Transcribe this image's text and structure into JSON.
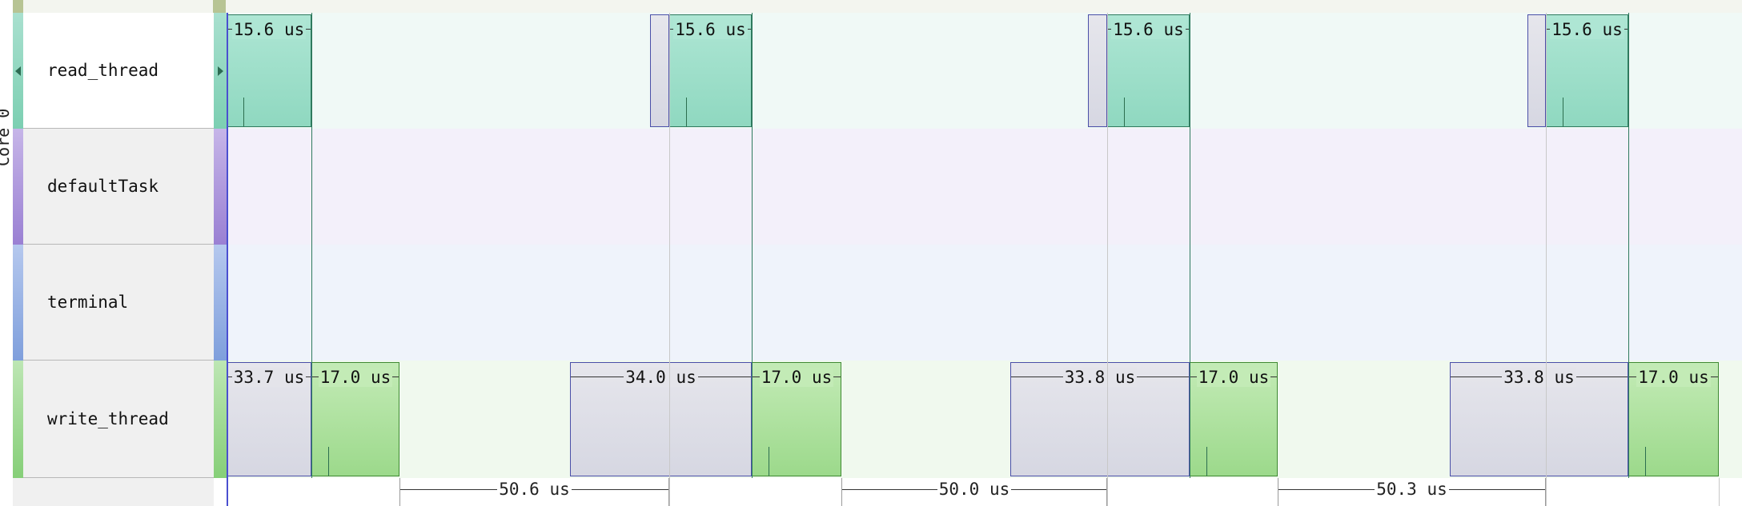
{
  "core_label": "Core 0",
  "lanes": [
    {
      "id": "read_thread",
      "label": "read_thread",
      "selected": true,
      "color_top": "#a9e0cf",
      "color_bottom": "#7ccfb2",
      "bg": "#f0f9f6"
    },
    {
      "id": "defaultTask",
      "label": "defaultTask",
      "selected": false,
      "color_top": "#c6b5e8",
      "color_bottom": "#9a80d3",
      "bg": "#f3f0fa"
    },
    {
      "id": "terminal",
      "label": "terminal",
      "selected": false,
      "color_top": "#b5c8ee",
      "color_bottom": "#7f9fdc",
      "bg": "#eff3fb"
    },
    {
      "id": "write_thread",
      "label": "write_thread",
      "selected": false,
      "color_top": "#bde6b4",
      "color_bottom": "#86cf78",
      "bg": "#f0f9ee"
    }
  ],
  "slices": [
    {
      "lane": 0,
      "kind": "run",
      "label": "15.6 us"
    },
    {
      "lane": 0,
      "kind": "wait",
      "label": ""
    },
    {
      "lane": 0,
      "kind": "run",
      "label": "15.6 us"
    },
    {
      "lane": 0,
      "kind": "wait",
      "label": ""
    },
    {
      "lane": 0,
      "kind": "run",
      "label": "15.6 us"
    },
    {
      "lane": 0,
      "kind": "wait",
      "label": ""
    },
    {
      "lane": 0,
      "kind": "run",
      "label": "15.6 us"
    },
    {
      "lane": 3,
      "kind": "wait",
      "label": "33.7 us"
    },
    {
      "lane": 3,
      "kind": "run",
      "label": "17.0 us"
    },
    {
      "lane": 3,
      "kind": "wait",
      "label": "34.0 us"
    },
    {
      "lane": 3,
      "kind": "run",
      "label": "17.0 us"
    },
    {
      "lane": 3,
      "kind": "wait",
      "label": "33.8 us"
    },
    {
      "lane": 3,
      "kind": "run",
      "label": "17.0 us"
    },
    {
      "lane": 3,
      "kind": "wait",
      "label": "33.8 us"
    },
    {
      "lane": 3,
      "kind": "run",
      "label": "17.0 us"
    }
  ],
  "gaps": [
    {
      "label": "50.6 us"
    },
    {
      "label": "50.0 us"
    },
    {
      "label": "50.3 us"
    }
  ],
  "colors": {
    "run_read": "#8fd8c0",
    "run_write": "#9cd98b",
    "wait": "#d6d7e2",
    "slice_border_read": "#2f7a5e",
    "slice_border_write": "#3f8a32",
    "slice_border_wait": "#4a4fa8",
    "cursor": "#4a4fd0"
  }
}
